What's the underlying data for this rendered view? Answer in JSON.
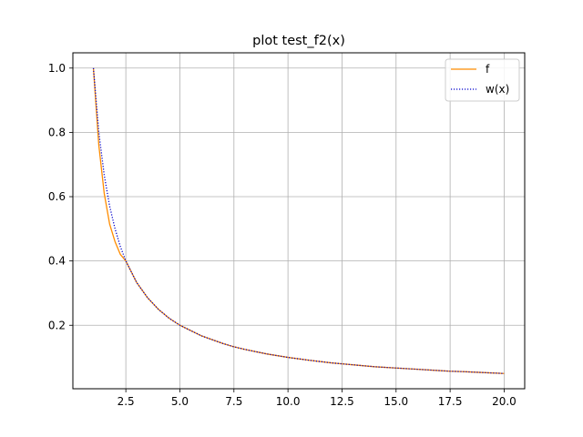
{
  "chart_data": {
    "type": "line",
    "title": "plot test_f2(x)",
    "xlabel": "",
    "ylabel": "",
    "xlim": [
      0.05,
      20.95
    ],
    "ylim": [
      0.0025,
      1.0475
    ],
    "grid": true,
    "legend_position": "upper right",
    "x_ticks": [
      2.5,
      5.0,
      7.5,
      10.0,
      12.5,
      15.0,
      17.5,
      20.0
    ],
    "x_tick_labels": [
      "2.5",
      "5.0",
      "7.5",
      "10.0",
      "12.5",
      "15.0",
      "17.5",
      "20.0"
    ],
    "y_ticks": [
      0.2,
      0.4,
      0.6,
      0.8,
      1.0
    ],
    "y_tick_labels": [
      "0.2",
      "0.4",
      "0.6",
      "0.8",
      "1.0"
    ],
    "series": [
      {
        "name": "f",
        "color": "#ff8c00",
        "style": "solid",
        "x": [
          1.0,
          1.25,
          1.5,
          1.75,
          2.0,
          2.25,
          2.5,
          3.0,
          3.5,
          4.0,
          4.5,
          5.0,
          6.0,
          7.0,
          7.5,
          8.0,
          9.0,
          10.0,
          11.0,
          12.0,
          12.5,
          13.0,
          14.0,
          15.0,
          16.0,
          17.0,
          17.5,
          18.0,
          19.0,
          20.0
        ],
        "y": [
          1.0,
          0.76,
          0.61,
          0.515,
          0.46,
          0.42,
          0.4,
          0.333,
          0.286,
          0.25,
          0.222,
          0.2,
          0.167,
          0.143,
          0.133,
          0.125,
          0.111,
          0.1,
          0.091,
          0.083,
          0.08,
          0.077,
          0.071,
          0.067,
          0.063,
          0.059,
          0.057,
          0.056,
          0.053,
          0.05
        ]
      },
      {
        "name": "w(x)",
        "color": "#0000cc",
        "style": "dotted",
        "x": [
          1.0,
          1.25,
          1.5,
          1.75,
          2.0,
          2.25,
          2.5,
          3.0,
          3.5,
          4.0,
          4.5,
          5.0,
          6.0,
          7.0,
          7.5,
          8.0,
          9.0,
          10.0,
          11.0,
          12.0,
          12.5,
          13.0,
          14.0,
          15.0,
          16.0,
          17.0,
          17.5,
          18.0,
          19.0,
          20.0
        ],
        "y": [
          1.0,
          0.8,
          0.667,
          0.571,
          0.5,
          0.444,
          0.4,
          0.333,
          0.286,
          0.25,
          0.222,
          0.2,
          0.167,
          0.143,
          0.133,
          0.125,
          0.111,
          0.1,
          0.091,
          0.083,
          0.08,
          0.077,
          0.071,
          0.067,
          0.063,
          0.059,
          0.057,
          0.056,
          0.053,
          0.05
        ]
      }
    ]
  }
}
